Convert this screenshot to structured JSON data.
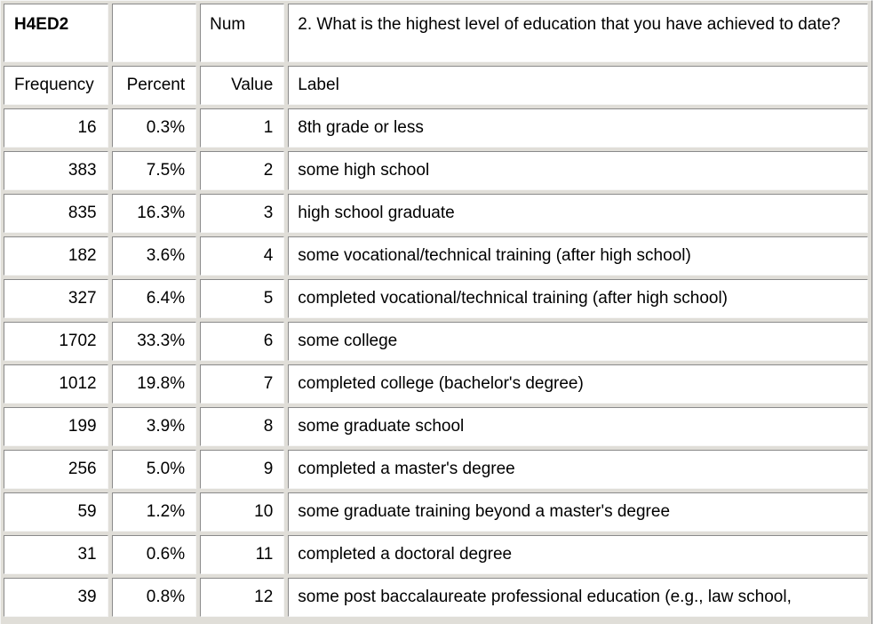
{
  "header": {
    "variable_code": "H4ED2",
    "blank_cell": "",
    "num_label": "Num",
    "question": "2. What is the highest level of education that you have achieved to date?"
  },
  "columns": {
    "frequency": "Frequency",
    "percent": "Percent",
    "value": "Value",
    "label": "Label"
  },
  "rows": [
    {
      "frequency": "16",
      "percent": "0.3%",
      "value": "1",
      "label": "8th grade or less"
    },
    {
      "frequency": "383",
      "percent": "7.5%",
      "value": "2",
      "label": "some high school"
    },
    {
      "frequency": "835",
      "percent": "16.3%",
      "value": "3",
      "label": "high school graduate"
    },
    {
      "frequency": "182",
      "percent": "3.6%",
      "value": "4",
      "label": "some vocational/technical training (after high school)"
    },
    {
      "frequency": "327",
      "percent": "6.4%",
      "value": "5",
      "label": "completed vocational/technical training (after high school)"
    },
    {
      "frequency": "1702",
      "percent": "33.3%",
      "value": "6",
      "label": "some college"
    },
    {
      "frequency": "1012",
      "percent": "19.8%",
      "value": "7",
      "label": "completed college (bachelor's degree)"
    },
    {
      "frequency": "199",
      "percent": "3.9%",
      "value": "8",
      "label": "some graduate school"
    },
    {
      "frequency": "256",
      "percent": "5.0%",
      "value": "9",
      "label": "completed a master's degree"
    },
    {
      "frequency": "59",
      "percent": "1.2%",
      "value": "10",
      "label": "some graduate training beyond a master's degree"
    },
    {
      "frequency": "31",
      "percent": "0.6%",
      "value": "11",
      "label": "completed a doctoral degree"
    },
    {
      "frequency": "39",
      "percent": "0.8%",
      "value": "12",
      "label": "some post baccalaureate professional education (e.g., law school,"
    }
  ]
}
